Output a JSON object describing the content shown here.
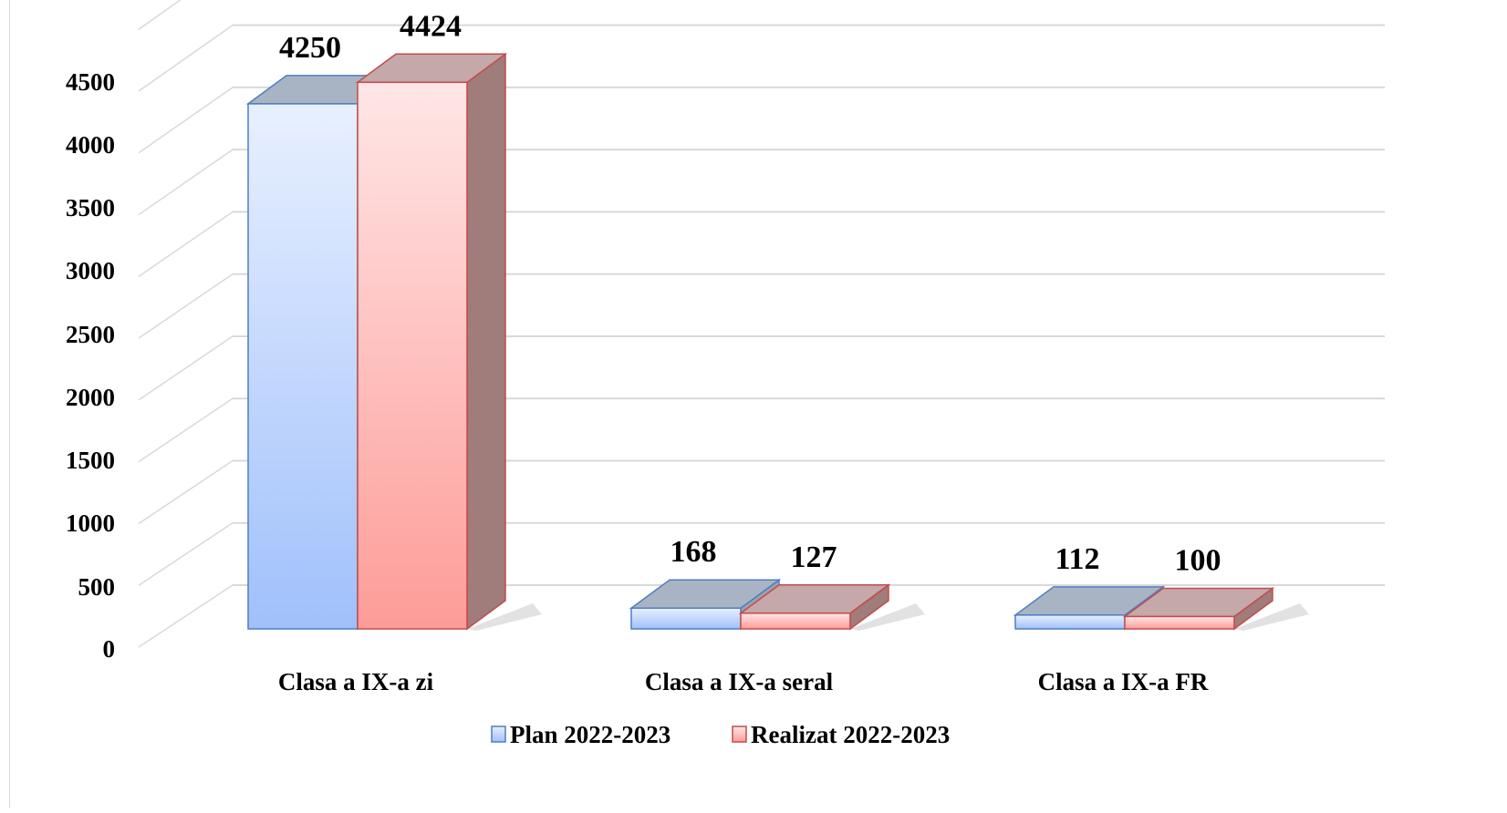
{
  "chart_data": {
    "type": "bar",
    "three_d": true,
    "title": "",
    "xlabel": "",
    "ylabel": "",
    "categories": [
      "Clasa a IX-a zi",
      "Clasa a IX-a seral",
      "Clasa a IX-a FR"
    ],
    "series": [
      {
        "name": "Plan 2022-2023",
        "values": [
          4250,
          168,
          112
        ],
        "color": "#a9c6ff",
        "edge": "#4f7ec2"
      },
      {
        "name": "Realizat 2022-2023",
        "values": [
          4424,
          127,
          100
        ],
        "color": "#ffaaaa",
        "edge": "#c44b4b"
      }
    ],
    "ylim": [
      0,
      4500
    ],
    "yticks": [
      0,
      500,
      1000,
      1500,
      2000,
      2500,
      3000,
      3500,
      4000,
      4500
    ],
    "grid": true,
    "legend_position": "bottom"
  }
}
